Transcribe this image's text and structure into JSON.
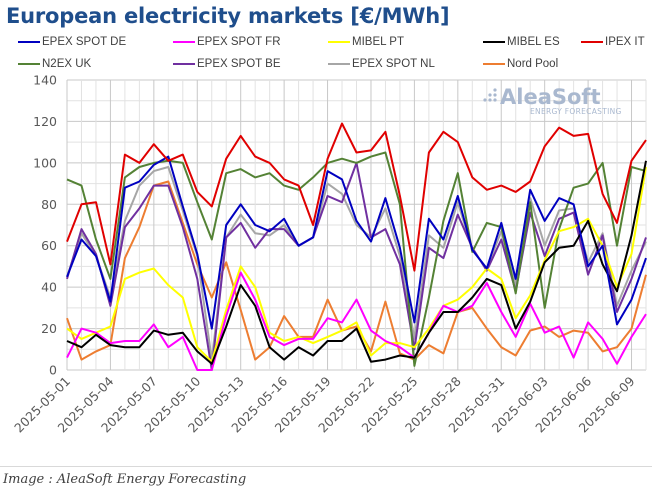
{
  "chart_data": {
    "type": "line",
    "title": "European electricity markets [€/MWh]",
    "xlabel": "",
    "ylabel": "",
    "ylim": [
      0,
      140
    ],
    "yticks": [
      0,
      20,
      40,
      60,
      80,
      100,
      120,
      140
    ],
    "grid": true,
    "legend_position": "top",
    "x": [
      "2025-05-01",
      "2025-05-02",
      "2025-05-03",
      "2025-05-04",
      "2025-05-05",
      "2025-05-06",
      "2025-05-07",
      "2025-05-08",
      "2025-05-09",
      "2025-05-10",
      "2025-05-11",
      "2025-05-12",
      "2025-05-13",
      "2025-05-14",
      "2025-05-15",
      "2025-05-16",
      "2025-05-17",
      "2025-05-18",
      "2025-05-19",
      "2025-05-20",
      "2025-05-21",
      "2025-05-22",
      "2025-05-23",
      "2025-05-24",
      "2025-05-25",
      "2025-05-26",
      "2025-05-27",
      "2025-05-28",
      "2025-05-29",
      "2025-05-30",
      "2025-05-31",
      "2025-06-01",
      "2025-06-02",
      "2025-06-03",
      "2025-06-04",
      "2025-06-05",
      "2025-06-06",
      "2025-06-07",
      "2025-06-08",
      "2025-06-09",
      "2025-06-10"
    ],
    "xtick_labels": [
      "2025-05-01",
      "2025-05-04",
      "2025-05-07",
      "2025-05-10",
      "2025-05-13",
      "2025-05-16",
      "2025-05-19",
      "2025-05-22",
      "2025-05-25",
      "2025-05-28",
      "2025-05-31",
      "2025-06-03",
      "2025-06-06",
      "2025-06-09"
    ],
    "series": [
      {
        "name": "EPEX SPOT DE",
        "color": "#0000c0",
        "values": [
          45,
          63,
          55,
          33,
          88,
          91,
          99,
          103,
          79,
          56,
          20,
          70,
          80,
          70,
          67,
          73,
          60,
          64,
          96,
          92,
          72,
          62,
          83,
          59,
          23,
          73,
          63,
          84,
          58,
          49,
          71,
          44,
          87,
          72,
          83,
          80,
          50,
          60,
          22,
          34,
          54
        ]
      },
      {
        "name": "EPEX SPOT FR",
        "color": "#ff00ff",
        "values": [
          6,
          20,
          18,
          13,
          14,
          14,
          22,
          11,
          16,
          0,
          -2,
          26,
          47,
          34,
          16,
          12,
          15,
          15,
          25,
          23,
          34,
          19,
          14,
          11,
          6,
          18,
          31,
          28,
          31,
          42,
          28,
          16,
          32,
          18,
          21,
          6,
          23,
          15,
          3,
          16,
          27
        ]
      },
      {
        "name": "MIBEL PT",
        "color": "#ffff00",
        "values": [
          20,
          15,
          18,
          21,
          44,
          47,
          49,
          41,
          35,
          11,
          4,
          29,
          50,
          40,
          18,
          14,
          16,
          13,
          16,
          19,
          23,
          7,
          13,
          13,
          11,
          20,
          31,
          34,
          40,
          49,
          44,
          25,
          36,
          53,
          67,
          69,
          73,
          60,
          40,
          56,
          98
        ]
      },
      {
        "name": "MIBEL ES",
        "color": "#000000",
        "values": [
          14,
          11,
          17,
          12,
          11,
          11,
          19,
          17,
          18,
          9,
          3,
          21,
          41,
          31,
          11,
          5,
          11,
          7,
          14,
          14,
          20,
          4,
          5,
          7,
          6,
          18,
          28,
          28,
          35,
          44,
          41,
          20,
          33,
          52,
          59,
          60,
          72,
          51,
          38,
          65,
          101
        ]
      },
      {
        "name": "IPEX IT",
        "color": "#e00000",
        "values": [
          62,
          80,
          81,
          51,
          104,
          100,
          109,
          101,
          104,
          86,
          79,
          102,
          113,
          103,
          100,
          92,
          89,
          70,
          102,
          119,
          105,
          106,
          115,
          84,
          48,
          105,
          115,
          110,
          93,
          87,
          89,
          86,
          91,
          108,
          117,
          113,
          114,
          85,
          71,
          101,
          111
        ]
      },
      {
        "name": "N2EX UK",
        "color": "#548235",
        "values": [
          92,
          89,
          63,
          44,
          93,
          98,
          100,
          101,
          100,
          81,
          63,
          95,
          97,
          93,
          95,
          89,
          87,
          93,
          100,
          102,
          100,
          103,
          105,
          80,
          2,
          35,
          72,
          95,
          57,
          71,
          69,
          37,
          81,
          30,
          68,
          88,
          90,
          100,
          60,
          98,
          96
        ]
      },
      {
        "name": "EPEX SPOT BE",
        "color": "#7030a0",
        "values": [
          44,
          68,
          56,
          31,
          69,
          78,
          89,
          89,
          69,
          44,
          0,
          64,
          71,
          59,
          68,
          68,
          60,
          64,
          84,
          81,
          100,
          64,
          68,
          51,
          10,
          59,
          54,
          75,
          59,
          48,
          63,
          38,
          76,
          55,
          73,
          76,
          46,
          65,
          28,
          44,
          64
        ]
      },
      {
        "name": "EPEX SPOT NL",
        "color": "#a6a6a6",
        "values": [
          45,
          66,
          55,
          35,
          72,
          89,
          96,
          98,
          77,
          55,
          5,
          64,
          75,
          66,
          65,
          70,
          60,
          64,
          90,
          85,
          70,
          64,
          78,
          55,
          15,
          65,
          59,
          81,
          58,
          49,
          67,
          41,
          83,
          60,
          77,
          78,
          52,
          66,
          31,
          48,
          62
        ]
      },
      {
        "name": "Nord Pool",
        "color": "#ed7d31",
        "values": [
          25,
          5,
          9,
          12,
          54,
          69,
          89,
          91,
          71,
          51,
          35,
          52,
          29,
          5,
          11,
          26,
          16,
          16,
          34,
          19,
          21,
          9,
          33,
          8,
          5,
          12,
          8,
          28,
          30,
          20,
          11,
          7,
          19,
          21,
          16,
          19,
          18,
          9,
          11,
          20,
          46
        ]
      }
    ]
  },
  "watermark": {
    "brand": "AleaSoft",
    "tagline": "ENERGY FORECASTING"
  },
  "caption": "Image : AleaSoft Energy Forecasting"
}
